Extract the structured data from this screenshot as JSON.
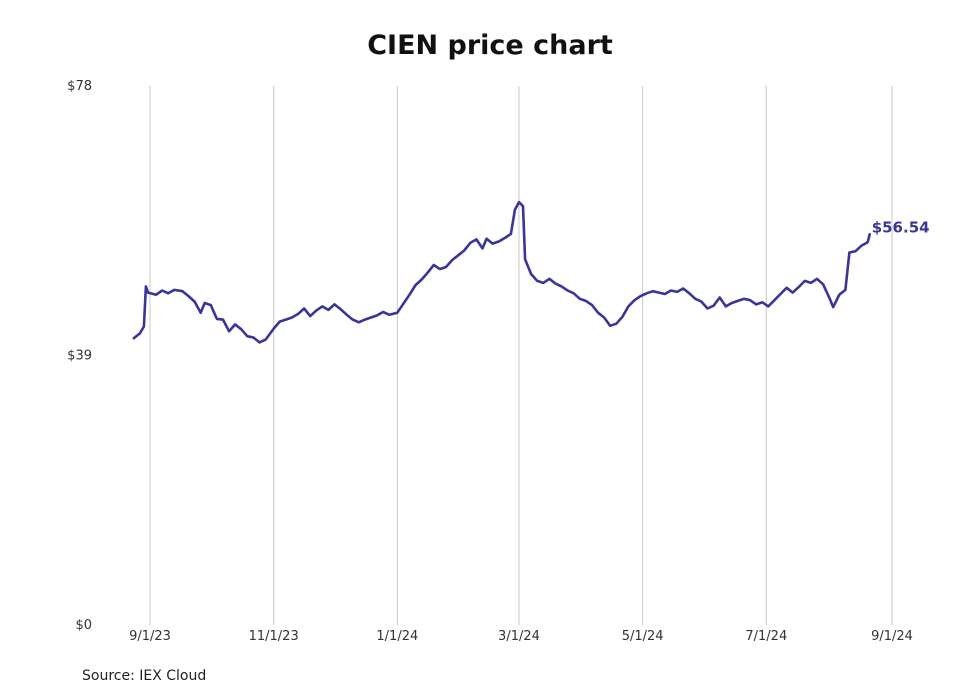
{
  "title": "CIEN price chart",
  "source": "Source: IEX Cloud",
  "colors": {
    "line": "#3a3596",
    "grid": "#c8c8c8",
    "text": "#333333"
  },
  "chart_data": {
    "type": "line",
    "title": "CIEN price chart",
    "xlabel": "",
    "ylabel": "",
    "x_ticks": [
      "9/1/23",
      "11/1/23",
      "1/1/24",
      "3/1/24",
      "5/1/24",
      "7/1/24",
      "9/1/24"
    ],
    "y_ticks": [
      "$0",
      "$39",
      "$78"
    ],
    "ylim": [
      0,
      78
    ],
    "xlim": [
      "2023-08-26",
      "2024-09-01"
    ],
    "grid": {
      "vertical": true,
      "horizontal": false
    },
    "last_value_label": "$56.54",
    "series": [
      {
        "color": "#3a3596",
        "points": [
          [
            "2023-08-24",
            41.5
          ],
          [
            "2023-08-27",
            42.2
          ],
          [
            "2023-08-29",
            43.2
          ],
          [
            "2023-08-30",
            49.0
          ],
          [
            "2023-08-31",
            48.1
          ],
          [
            "2023-09-04",
            47.8
          ],
          [
            "2023-09-07",
            48.4
          ],
          [
            "2023-09-10",
            48.0
          ],
          [
            "2023-09-13",
            48.5
          ],
          [
            "2023-09-17",
            48.3
          ],
          [
            "2023-09-20",
            47.6
          ],
          [
            "2023-09-23",
            46.8
          ],
          [
            "2023-09-26",
            45.2
          ],
          [
            "2023-09-28",
            46.6
          ],
          [
            "2023-10-01",
            46.3
          ],
          [
            "2023-10-04",
            44.3
          ],
          [
            "2023-10-07",
            44.2
          ],
          [
            "2023-10-10",
            42.5
          ],
          [
            "2023-10-13",
            43.5
          ],
          [
            "2023-10-16",
            42.8
          ],
          [
            "2023-10-19",
            41.8
          ],
          [
            "2023-10-22",
            41.6
          ],
          [
            "2023-10-25",
            40.9
          ],
          [
            "2023-10-28",
            41.3
          ],
          [
            "2023-11-01",
            42.9
          ],
          [
            "2023-11-04",
            43.9
          ],
          [
            "2023-11-07",
            44.2
          ],
          [
            "2023-11-10",
            44.5
          ],
          [
            "2023-11-13",
            45.0
          ],
          [
            "2023-11-16",
            45.8
          ],
          [
            "2023-11-19",
            44.7
          ],
          [
            "2023-11-22",
            45.5
          ],
          [
            "2023-11-25",
            46.1
          ],
          [
            "2023-11-28",
            45.6
          ],
          [
            "2023-12-01",
            46.4
          ],
          [
            "2023-12-04",
            45.7
          ],
          [
            "2023-12-07",
            44.9
          ],
          [
            "2023-12-10",
            44.2
          ],
          [
            "2023-12-13",
            43.8
          ],
          [
            "2023-12-16",
            44.2
          ],
          [
            "2023-12-19",
            44.5
          ],
          [
            "2023-12-22",
            44.8
          ],
          [
            "2023-12-25",
            45.3
          ],
          [
            "2023-12-28",
            44.9
          ],
          [
            "2024-01-01",
            45.2
          ],
          [
            "2024-01-04",
            46.5
          ],
          [
            "2024-01-07",
            47.8
          ],
          [
            "2024-01-10",
            49.2
          ],
          [
            "2024-01-13",
            50.0
          ],
          [
            "2024-01-16",
            51.0
          ],
          [
            "2024-01-19",
            52.1
          ],
          [
            "2024-01-22",
            51.5
          ],
          [
            "2024-01-25",
            51.8
          ],
          [
            "2024-01-28",
            52.8
          ],
          [
            "2024-01-31",
            53.5
          ],
          [
            "2024-02-03",
            54.2
          ],
          [
            "2024-02-06",
            55.3
          ],
          [
            "2024-02-09",
            55.8
          ],
          [
            "2024-02-12",
            54.5
          ],
          [
            "2024-02-14",
            55.9
          ],
          [
            "2024-02-17",
            55.2
          ],
          [
            "2024-02-20",
            55.5
          ],
          [
            "2024-02-23",
            56.0
          ],
          [
            "2024-02-26",
            56.6
          ],
          [
            "2024-02-28",
            60.1
          ],
          [
            "2024-03-01",
            61.2
          ],
          [
            "2024-03-03",
            60.6
          ],
          [
            "2024-03-04",
            52.9
          ],
          [
            "2024-03-07",
            50.8
          ],
          [
            "2024-03-10",
            49.8
          ],
          [
            "2024-03-13",
            49.5
          ],
          [
            "2024-03-16",
            50.1
          ],
          [
            "2024-03-19",
            49.4
          ],
          [
            "2024-03-22",
            49.0
          ],
          [
            "2024-03-25",
            48.4
          ],
          [
            "2024-03-28",
            48.0
          ],
          [
            "2024-03-31",
            47.2
          ],
          [
            "2024-04-03",
            46.9
          ],
          [
            "2024-04-06",
            46.3
          ],
          [
            "2024-04-09",
            45.2
          ],
          [
            "2024-04-12",
            44.5
          ],
          [
            "2024-04-15",
            43.3
          ],
          [
            "2024-04-18",
            43.6
          ],
          [
            "2024-04-21",
            44.6
          ],
          [
            "2024-04-24",
            46.1
          ],
          [
            "2024-04-27",
            47.0
          ],
          [
            "2024-04-30",
            47.6
          ],
          [
            "2024-05-03",
            48.0
          ],
          [
            "2024-05-06",
            48.3
          ],
          [
            "2024-05-09",
            48.1
          ],
          [
            "2024-05-12",
            47.9
          ],
          [
            "2024-05-15",
            48.4
          ],
          [
            "2024-05-18",
            48.2
          ],
          [
            "2024-05-21",
            48.7
          ],
          [
            "2024-05-24",
            48.0
          ],
          [
            "2024-05-27",
            47.2
          ],
          [
            "2024-05-30",
            46.8
          ],
          [
            "2024-06-02",
            45.8
          ],
          [
            "2024-06-05",
            46.2
          ],
          [
            "2024-06-08",
            47.4
          ],
          [
            "2024-06-11",
            46.1
          ],
          [
            "2024-06-14",
            46.6
          ],
          [
            "2024-06-17",
            46.9
          ],
          [
            "2024-06-20",
            47.2
          ],
          [
            "2024-06-23",
            47.0
          ],
          [
            "2024-06-26",
            46.4
          ],
          [
            "2024-06-29",
            46.7
          ],
          [
            "2024-07-02",
            46.1
          ],
          [
            "2024-07-05",
            47.0
          ],
          [
            "2024-07-08",
            47.9
          ],
          [
            "2024-07-11",
            48.8
          ],
          [
            "2024-07-14",
            48.1
          ],
          [
            "2024-07-17",
            48.9
          ],
          [
            "2024-07-20",
            49.8
          ],
          [
            "2024-07-23",
            49.5
          ],
          [
            "2024-07-26",
            50.1
          ],
          [
            "2024-07-29",
            49.3
          ],
          [
            "2024-08-01",
            47.4
          ],
          [
            "2024-08-03",
            46.0
          ],
          [
            "2024-08-06",
            47.8
          ],
          [
            "2024-08-09",
            48.5
          ],
          [
            "2024-08-11",
            53.9
          ],
          [
            "2024-08-14",
            54.1
          ],
          [
            "2024-08-17",
            54.9
          ],
          [
            "2024-08-20",
            55.4
          ],
          [
            "2024-08-21",
            56.54
          ]
        ]
      }
    ]
  }
}
